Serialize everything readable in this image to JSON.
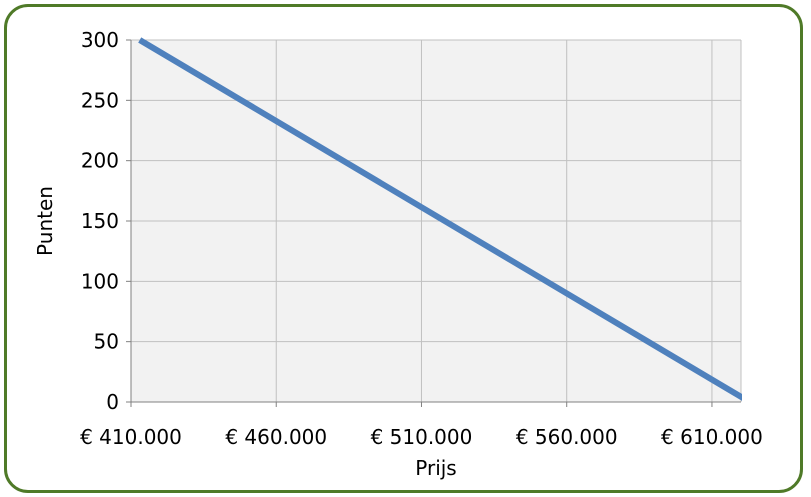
{
  "chart_data": {
    "type": "line",
    "title": "",
    "xlabel": "Prijs",
    "ylabel": "Punten",
    "xlim": [
      410000,
      620000
    ],
    "ylim": [
      0,
      300
    ],
    "grid": true,
    "legend": "none",
    "x_ticks": [
      410000,
      460000,
      510000,
      560000,
      610000
    ],
    "x_tick_labels": [
      "€ 410.000",
      "€ 460.000",
      "€ 510.000",
      "€ 560.000",
      "€ 610.000"
    ],
    "y_ticks": [
      0,
      50,
      100,
      150,
      200,
      250,
      300
    ],
    "y_tick_labels": [
      "0",
      "50",
      "100",
      "150",
      "200",
      "250",
      "300"
    ],
    "series": [
      {
        "x": [
          413000,
          623000
        ],
        "values": [
          300,
          0
        ],
        "color": "#4f81bd"
      }
    ],
    "colors": {
      "frame_border": "#4f7a28",
      "plot_background": "#f2f2f2",
      "grid": "#c0c0c0",
      "line": "#4f81bd"
    }
  }
}
